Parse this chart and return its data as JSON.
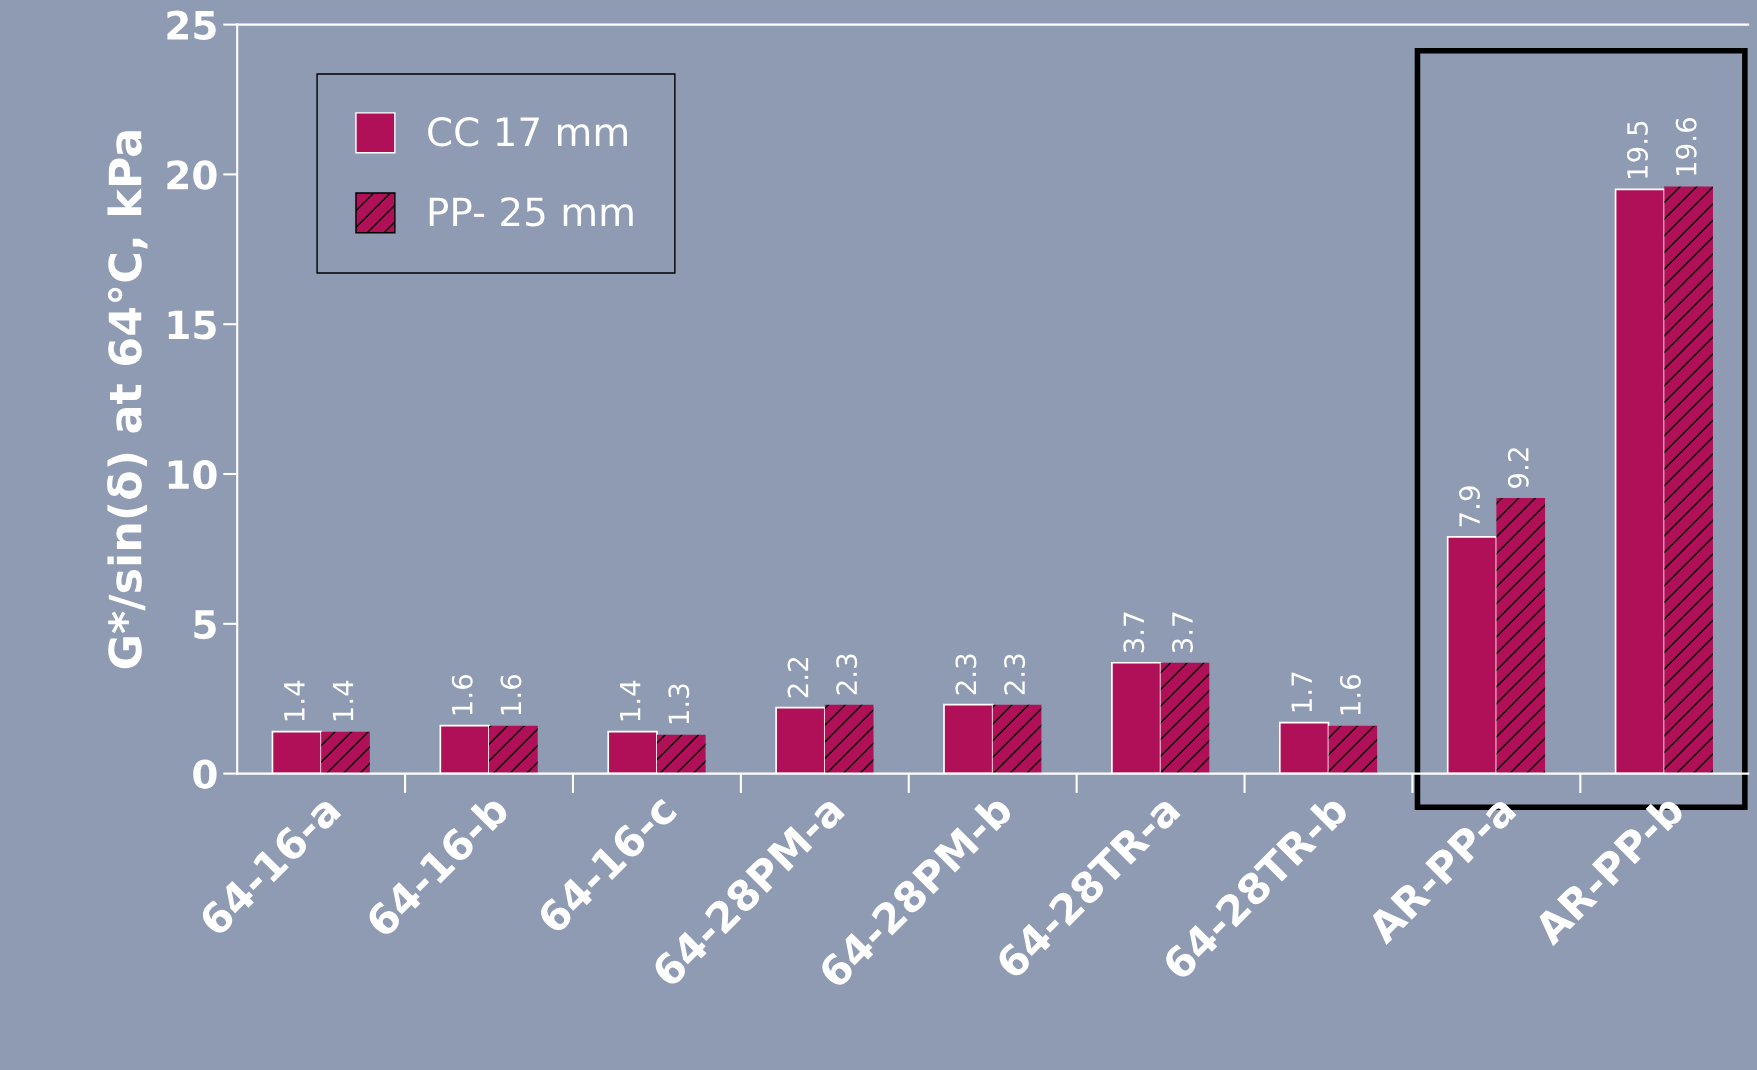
{
  "chart_data": {
    "type": "bar",
    "ylabel": "G*/sin(δ) at 64°C, kPa",
    "categories": [
      "64-16-a",
      "64-16-b",
      "64-16-c",
      "64-28PM-a",
      "64-28PM-b",
      "64-28TR-a",
      "64-28TR-b",
      "AR-PP-a",
      "AR-PP-b"
    ],
    "series": [
      {
        "name": "CC 17 mm",
        "color": "#b01058",
        "values": [
          1.4,
          1.6,
          1.4,
          2.2,
          2.3,
          3.7,
          1.7,
          7.9,
          19.5
        ]
      },
      {
        "name": "PP- 25 mm",
        "color": "#b01058",
        "values": [
          1.4,
          1.6,
          1.3,
          2.3,
          2.3,
          3.7,
          1.6,
          9.2,
          19.6
        ]
      }
    ],
    "ylim": [
      0,
      25
    ],
    "yticks": [
      0,
      5,
      10,
      15,
      20,
      25
    ],
    "data_labels": true,
    "grid": false,
    "legend": "top left"
  }
}
